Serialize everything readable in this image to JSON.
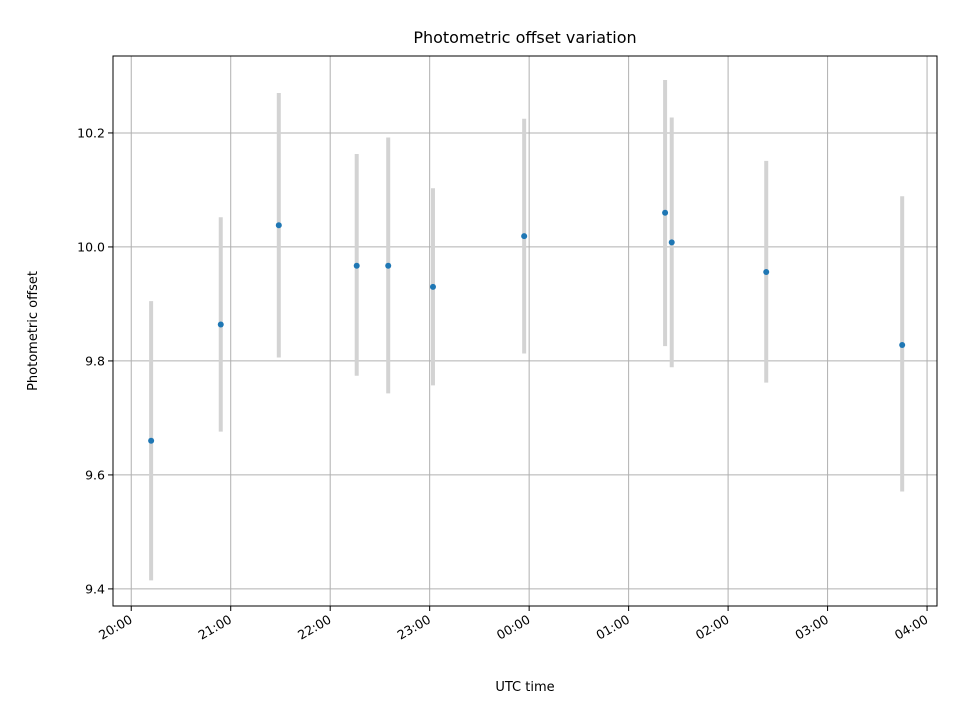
{
  "chart_data": {
    "type": "scatter",
    "title": "Photometric offset variation",
    "xlabel": "UTC time",
    "ylabel": "Photometric offset",
    "x_axis": {
      "kind": "time",
      "ticks": [
        "20:00",
        "21:00",
        "22:00",
        "23:00",
        "00:00",
        "01:00",
        "02:00",
        "03:00",
        "04:00"
      ],
      "xlim": [
        "19:49",
        "04:06"
      ]
    },
    "y_axis": {
      "ticks": [
        "9.4",
        "9.6",
        "9.8",
        "10.0",
        "10.2"
      ],
      "ylim": [
        9.37,
        10.335
      ]
    },
    "grid": true,
    "series": [
      {
        "marker_color": "#1f77b4",
        "errorbar_color": "#d3d3d3",
        "points": [
          {
            "time": "20:12",
            "y": 9.66,
            "yerr_low": 9.415,
            "yerr_high": 9.905
          },
          {
            "time": "20:54",
            "y": 9.864,
            "yerr_low": 9.676,
            "yerr_high": 10.052
          },
          {
            "time": "21:29",
            "y": 10.038,
            "yerr_low": 9.806,
            "yerr_high": 10.27
          },
          {
            "time": "22:16",
            "y": 9.967,
            "yerr_low": 9.774,
            "yerr_high": 10.163
          },
          {
            "time": "22:35",
            "y": 9.967,
            "yerr_low": 9.743,
            "yerr_high": 10.192
          },
          {
            "time": "23:02",
            "y": 9.93,
            "yerr_low": 9.757,
            "yerr_high": 10.103
          },
          {
            "time": "23:57",
            "y": 10.019,
            "yerr_low": 9.813,
            "yerr_high": 10.225
          },
          {
            "time": "01:22",
            "y": 10.06,
            "yerr_low": 9.826,
            "yerr_high": 10.293
          },
          {
            "time": "01:26",
            "y": 10.008,
            "yerr_low": 9.789,
            "yerr_high": 10.227
          },
          {
            "time": "02:23",
            "y": 9.956,
            "yerr_low": 9.762,
            "yerr_high": 10.151
          },
          {
            "time": "03:45",
            "y": 9.828,
            "yerr_low": 9.571,
            "yerr_high": 10.089
          }
        ]
      }
    ]
  }
}
